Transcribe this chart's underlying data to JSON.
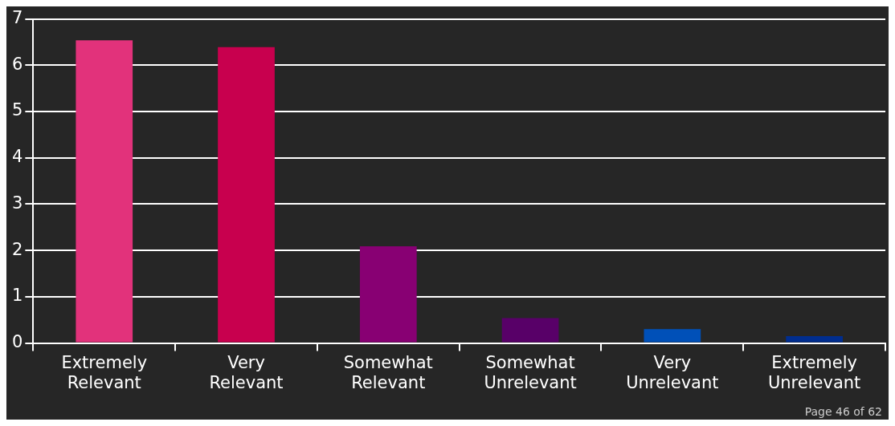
{
  "chart_data": {
    "type": "bar",
    "categories": [
      "Extremely Relevant",
      "Very Relevant",
      "Somewhat Relevant",
      "Somewhat Unrelevant",
      "Very Unrelevant",
      "Extremely Unrelevant"
    ],
    "values": [
      6.54,
      6.39,
      2.09,
      0.54,
      0.3,
      0.15
    ],
    "colors": [
      "#e2327b",
      "#c8004e",
      "#880073",
      "#580068",
      "#0050b8",
      "#002d8f"
    ],
    "ylim": [
      0,
      7
    ],
    "yticks": [
      0,
      1,
      2,
      3,
      4,
      5,
      6,
      7
    ],
    "grid": "y",
    "annotations": [
      "Page 46 of 62"
    ]
  }
}
